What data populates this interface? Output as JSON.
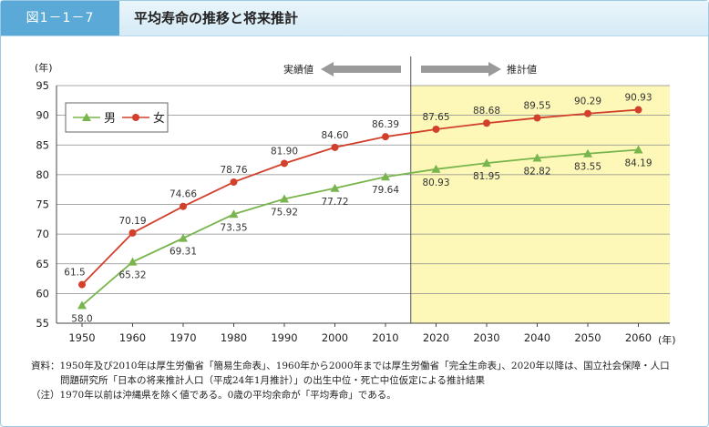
{
  "header": {
    "figure_label": "図1－1－7",
    "title": "平均寿命の推移と将来推計"
  },
  "period_labels": {
    "actual": "実績値",
    "projection": "推計値"
  },
  "axis_units": {
    "y": "(年)",
    "x": "(年)"
  },
  "colors": {
    "male": "#79b54d",
    "female": "#d2402b",
    "projection_bg": "#fdf8b8"
  },
  "chart_data": {
    "type": "line",
    "x": [
      1950,
      1960,
      1970,
      1980,
      1990,
      2000,
      2010,
      2020,
      2030,
      2040,
      2050,
      2060
    ],
    "series": [
      {
        "name": "女",
        "values": [
          61.5,
          70.19,
          74.66,
          78.76,
          81.9,
          84.6,
          86.39,
          87.65,
          88.68,
          89.55,
          90.29,
          90.93
        ],
        "labels": [
          "61.5",
          "70.19",
          "74.66",
          "78.76",
          "81.90",
          "84.60",
          "86.39",
          "87.65",
          "88.68",
          "89.55",
          "90.29",
          "90.93"
        ]
      },
      {
        "name": "男",
        "values": [
          58.0,
          65.32,
          69.31,
          73.35,
          75.92,
          77.72,
          79.64,
          80.93,
          81.95,
          82.82,
          83.55,
          84.19
        ],
        "labels": [
          "58.0",
          "65.32",
          "69.31",
          "73.35",
          "75.92",
          "77.72",
          "79.64",
          "80.93",
          "81.95",
          "82.82",
          "83.55",
          "84.19"
        ]
      }
    ],
    "ylim": [
      55,
      95
    ],
    "yticks": [
      55,
      60,
      65,
      70,
      75,
      80,
      85,
      90,
      95
    ],
    "projection_start": 2015,
    "grid": true,
    "legend": "top-left"
  },
  "notes": {
    "line1": "資料：1950年及び2010年は厚生労働省「簡易生命表」、1960年から2000年までは厚生労働省「完全生命表」、2020年以降は、国立社会保障・人口",
    "line2": "問題研究所「日本の将来推計人口（平成24年1月推計）」の出生中位・死亡中位仮定による推計結果",
    "line3": "（注）1970年以前は沖縄県を除く値である。0歳の平均余命が「平均寿命」である。"
  }
}
